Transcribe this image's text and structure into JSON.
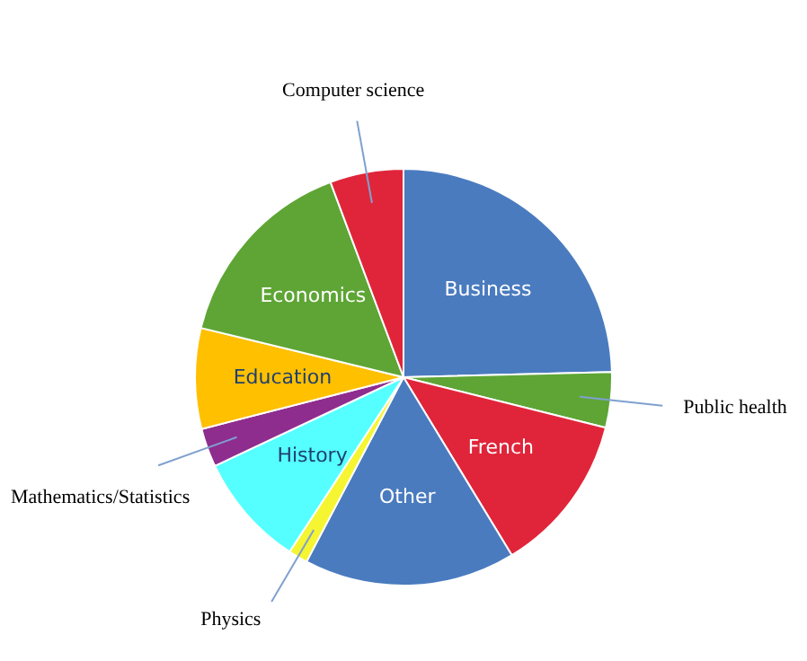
{
  "chart_data": {
    "type": "pie",
    "categories": [
      "Business",
      "Public health",
      "French",
      "Other",
      "Physics",
      "History",
      "Mathematics/Statistics",
      "Education",
      "Economics",
      "Computer science"
    ],
    "values": [
      24.6,
      4.3,
      12.4,
      16.4,
      1.5,
      8.8,
      3,
      7.8,
      15.5,
      5.7
    ],
    "colors": [
      "#4a7bbf",
      "#5ea535",
      "#e0253a",
      "#4a7bbf",
      "#f5f531",
      "#55ffff",
      "#8e2d8e",
      "#ffc000",
      "#5ea535",
      "#e0253a"
    ],
    "legend": false
  }
}
